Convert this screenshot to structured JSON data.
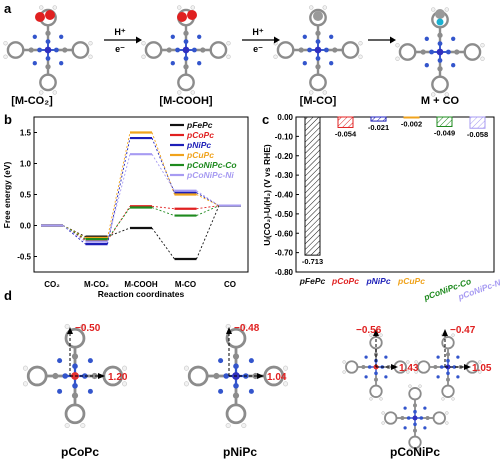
{
  "panel_labels": {
    "a": "a",
    "b": "b",
    "c": "c",
    "d": "d"
  },
  "panel_a": {
    "states": [
      "[M-CO₂]",
      "[M-COOH]",
      "[M-CO]",
      "M + CO"
    ],
    "steps": [
      {
        "top": "H⁺",
        "bottom": "e⁻"
      },
      {
        "top": "H⁺",
        "bottom": "e⁻"
      }
    ]
  },
  "panel_d": {
    "captions": [
      "pCoPc",
      "pNiPc",
      "pCoNiPc"
    ],
    "annotations": [
      "−0.50",
      "1.20",
      "−0.48",
      "1.04",
      "−0.56",
      "1.43",
      "−0.47",
      "1.05"
    ]
  },
  "colors": {
    "black": "#111111",
    "red": "#e02020",
    "blue": "#1d1fb8",
    "orange": "#f0a31c",
    "green": "#1e8a1e",
    "lavender": "#a79bf2",
    "metal_red": "#e53030",
    "metal_blue": "#3030c0",
    "ring_gray": "#8c8c8c",
    "n_blue": "#3355cc"
  },
  "chart_data": [
    {
      "type": "line",
      "panel": "b",
      "xlabel": "Reaction coordinates",
      "ylabel": "Free energy (eV)",
      "categories": [
        "CO₂",
        "M-CO₂",
        "M-COOH",
        "M-CO",
        "CO"
      ],
      "ylim": [
        -0.75,
        1.75
      ],
      "yticks": [
        "-0.5",
        "0.0",
        "0.5",
        "1.0",
        "1.5"
      ],
      "legend_position": "top-right",
      "series": [
        {
          "name": "pFePc",
          "color": "#111111",
          "values": [
            0.0,
            -0.18,
            -0.04,
            -0.54,
            0.32
          ]
        },
        {
          "name": "pCoPc",
          "color": "#e02020",
          "values": [
            0.0,
            -0.24,
            0.31,
            0.27,
            0.32
          ]
        },
        {
          "name": "pNiPc",
          "color": "#1d1fb8",
          "values": [
            0.0,
            -0.3,
            1.41,
            0.53,
            0.32
          ]
        },
        {
          "name": "pCuPc",
          "color": "#f0a31c",
          "values": [
            0.0,
            -0.2,
            1.5,
            0.5,
            0.32
          ]
        },
        {
          "name": "pCoNiPc-Co",
          "color": "#1e8a1e",
          "values": [
            0.0,
            -0.22,
            0.29,
            0.16,
            0.32
          ]
        },
        {
          "name": "pCoNiPc-Ni",
          "color": "#a79bf2",
          "values": [
            0.0,
            -0.26,
            1.15,
            0.56,
            0.32
          ]
        }
      ]
    },
    {
      "type": "bar",
      "panel": "c",
      "ylabel": "Uₗ(CO₂)-Uₗ(H₂) (V vs RHE)",
      "ylim": [
        -0.8,
        0.0
      ],
      "yticks": [
        "-0.80",
        "-0.70",
        "-0.60",
        "-0.50",
        "-0.40",
        "-0.30",
        "-0.20",
        "-0.10",
        "0.00"
      ],
      "categories": [
        "pFePc",
        "pCoPc",
        "pNiPc",
        "pCuPc",
        "pCoNiPc-Co",
        "pCoNiPc-Ni"
      ],
      "values": [
        -0.713,
        -0.054,
        -0.021,
        -0.002,
        -0.049,
        -0.058
      ],
      "labels": [
        "-0.713",
        "-0.054",
        "-0.021",
        "-0.002",
        "-0.049",
        "-0.058"
      ],
      "colors": [
        "#111111",
        "#e02020",
        "#1d1fb8",
        "#f0a31c",
        "#1e8a1e",
        "#a79bf2"
      ]
    }
  ]
}
